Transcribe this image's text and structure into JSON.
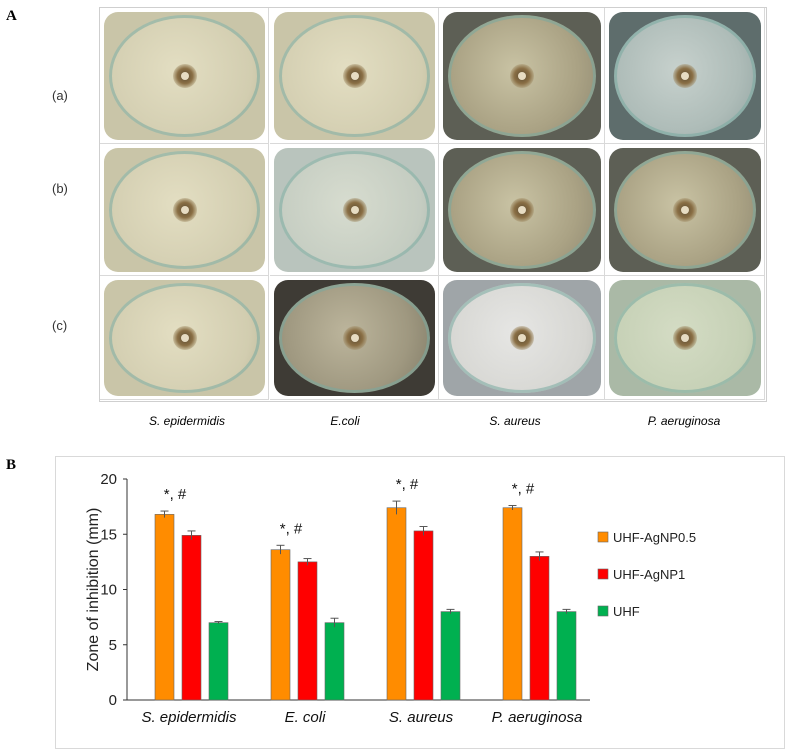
{
  "figure": {
    "panel_a_label": "A",
    "panel_b_label": "B",
    "row_labels": [
      "(a)",
      "(b)",
      "(c)"
    ],
    "organisms": [
      "S. epidermidis",
      "E.coli",
      "S. aureus",
      "P. aeruginosa"
    ],
    "plates": [
      [
        "clear-cream",
        "clear-cream",
        "speckled",
        "speckled-blue"
      ],
      [
        "clear-cream",
        "clear-blue",
        "speckled",
        "speckled"
      ],
      [
        "clear-cream",
        "speckled-dark",
        "clear-white",
        "clear-green"
      ]
    ]
  },
  "chart_data": {
    "type": "bar",
    "categories": [
      "S. epidermidis",
      "E. coli",
      "S. aureus",
      "P. aeruginosa"
    ],
    "series": [
      {
        "name": "UHF-AgNP0.5",
        "color": "#ff8c00",
        "values": [
          16.8,
          13.6,
          17.4,
          17.4
        ],
        "errors": [
          0.3,
          0.4,
          0.6,
          0.2
        ]
      },
      {
        "name": "UHF-AgNP1",
        "color": "#ff0000",
        "values": [
          14.9,
          12.5,
          15.3,
          13.0
        ],
        "errors": [
          0.4,
          0.3,
          0.4,
          0.4
        ]
      },
      {
        "name": "UHF",
        "color": "#00b050",
        "values": [
          7.0,
          7.0,
          8.0,
          8.0
        ],
        "errors": [
          0.1,
          0.4,
          0.2,
          0.2
        ]
      }
    ],
    "annotations": [
      "*, #",
      "*, #",
      "*, #",
      "*, #"
    ],
    "ylabel": "Zone of inhibition (mm)",
    "ylim": [
      0,
      20
    ],
    "yticks": [
      0,
      5,
      10,
      15,
      20
    ],
    "legend_position": "right",
    "grid": false
  }
}
